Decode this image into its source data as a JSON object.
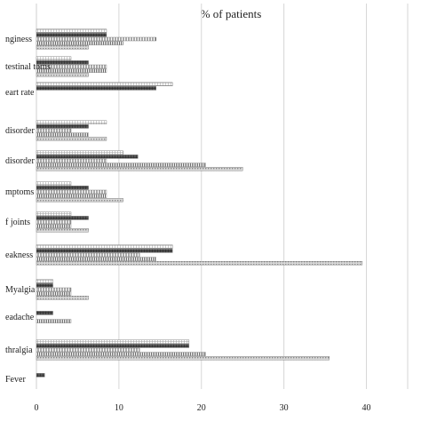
{
  "chart_data": {
    "type": "bar",
    "orientation": "horizontal",
    "title": "% of patients",
    "xlabel": "",
    "ylabel": "",
    "xlim": [
      0,
      45
    ],
    "xticks": [
      "0",
      "10",
      "20",
      "30",
      "40"
    ],
    "grid": true,
    "legend": "none",
    "categories": [
      "nginess",
      "testinal toms",
      "eart rate",
      "disorder",
      "disorder",
      "mptoms",
      "f joints",
      "eakness",
      "Myalgia",
      "eadache",
      "thralgia",
      "Fever"
    ],
    "series": [
      {
        "values": [
          8.5,
          4.2,
          16.5,
          8.5,
          10.5,
          4.2,
          4.2,
          16.5,
          2.0,
          0,
          18.5,
          0
        ],
        "pattern": "light-grid"
      },
      {
        "values": [
          8.5,
          6.3,
          14.5,
          6.3,
          12.3,
          6.3,
          6.3,
          16.5,
          2.0,
          2.0,
          18.5,
          1.0
        ],
        "pattern": "dark-grid"
      },
      {
        "values": [
          14.5,
          8.5,
          0,
          4.2,
          8.5,
          8.5,
          4.2,
          12.5,
          4.2,
          0,
          12.5,
          0
        ],
        "pattern": "vertical-lines"
      },
      {
        "values": [
          10.5,
          8.5,
          0,
          6.3,
          20.5,
          8.5,
          4.2,
          14.5,
          4.2,
          4.2,
          20.5,
          0
        ],
        "pattern": "vertical-lines-dense"
      },
      {
        "values": [
          6.3,
          6.3,
          0,
          8.5,
          25.0,
          10.5,
          6.3,
          39.5,
          6.3,
          0,
          35.5,
          0
        ],
        "pattern": "light-dots"
      }
    ]
  }
}
